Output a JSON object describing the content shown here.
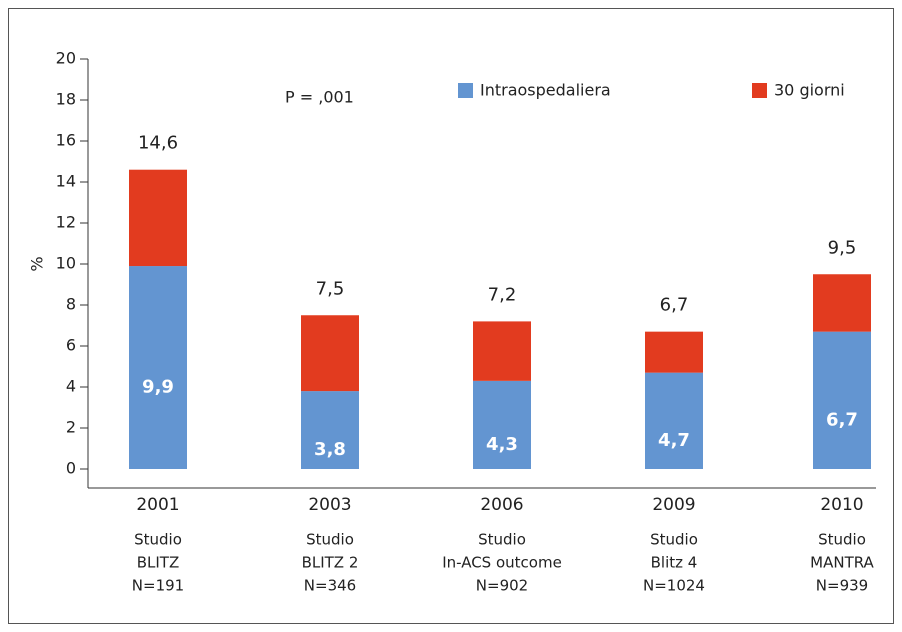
{
  "chart_data": {
    "type": "stacked-bar",
    "annotation": "P = ,001",
    "ylabel": "%",
    "categories": [
      [
        "2001",
        "Studio",
        "BLITZ",
        "N=191"
      ],
      [
        "2003",
        "Studio",
        "BLITZ 2",
        "N=346"
      ],
      [
        "2006",
        "Studio",
        "In-ACS outcome",
        "N=902"
      ],
      [
        "2009",
        "Studio",
        "Blitz 4",
        "N=1024"
      ],
      [
        "2010",
        "Studio",
        "MANTRA",
        "N=939"
      ]
    ],
    "series": [
      {
        "name": "Intraospedaliera",
        "color": "#6395d1",
        "values": [
          9.9,
          3.8,
          4.3,
          4.7,
          6.7
        ],
        "value_labels": [
          "9,9",
          "3,8",
          "4,3",
          "4,7",
          "6,7"
        ]
      },
      {
        "name": "30 giorni",
        "color": "#e23b1f",
        "values": [
          4.7,
          3.7,
          2.9,
          2.0,
          2.8
        ]
      }
    ],
    "total_labels": [
      "14,6",
      "7,5",
      "7,2",
      "6,7",
      "9,5"
    ],
    "ylim": [
      0,
      20
    ],
    "yticks": [
      0,
      2,
      4,
      6,
      8,
      10,
      12,
      14,
      16,
      18,
      20
    ]
  }
}
